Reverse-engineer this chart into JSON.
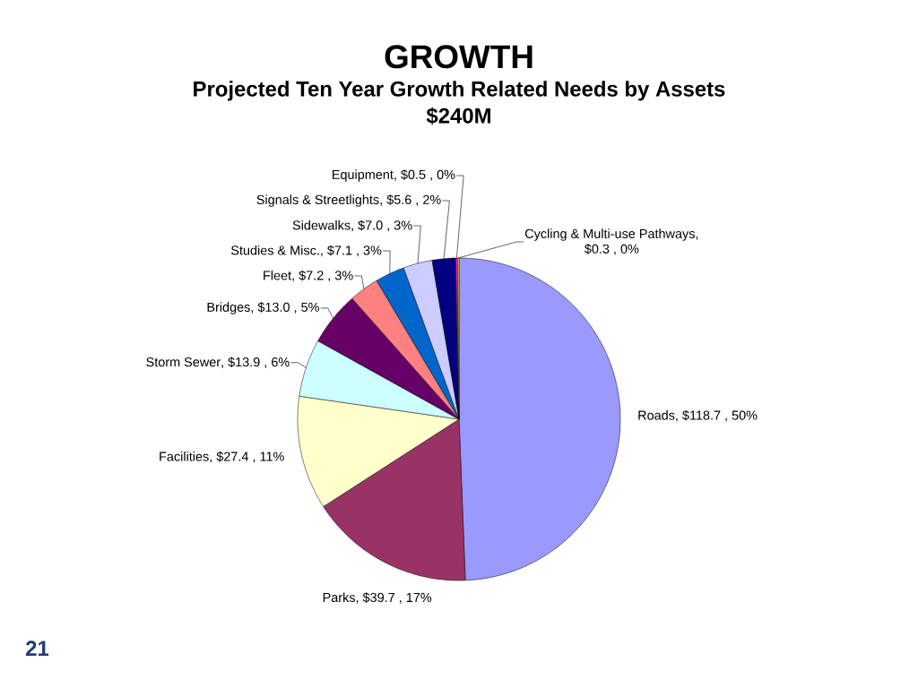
{
  "chart_data": {
    "type": "pie",
    "title": "GROWTH",
    "subtitle": "Projected Ten Year Growth Related Needs by Assets $240M",
    "categories": [
      "Roads",
      "Parks",
      "Facilities",
      "Storm Sewer",
      "Bridges",
      "Fleet",
      "Studies & Misc.",
      "Sidewalks",
      "Signals & Streetlights",
      "Equipment",
      "Cycling & Multi-use Pathways"
    ],
    "values": [
      118.7,
      39.7,
      27.4,
      13.9,
      13.0,
      7.2,
      7.1,
      7.0,
      5.6,
      0.5,
      0.3
    ],
    "colors": [
      "#9999ff",
      "#993366",
      "#ffffcc",
      "#ccffff",
      "#660066",
      "#ff8080",
      "#0066cc",
      "#ccccff",
      "#000080",
      "#ff00ff",
      "#ffff00"
    ],
    "value_labels": [
      ",  $118.7 , 50%",
      ",  $39.7 , 17%",
      ",  $27.4 , 11%",
      ",  $13.9 , 6%",
      ",  $13.0 , 5%",
      ",  $7.2 , 3%",
      ",  $7.1 , 3%",
      ",  $7.0 , 3%",
      ",  $5.6 , 2%",
      ",  $0.5 , 0%",
      ",  $0.3 , 0%"
    ],
    "annotations": [
      "21"
    ]
  }
}
